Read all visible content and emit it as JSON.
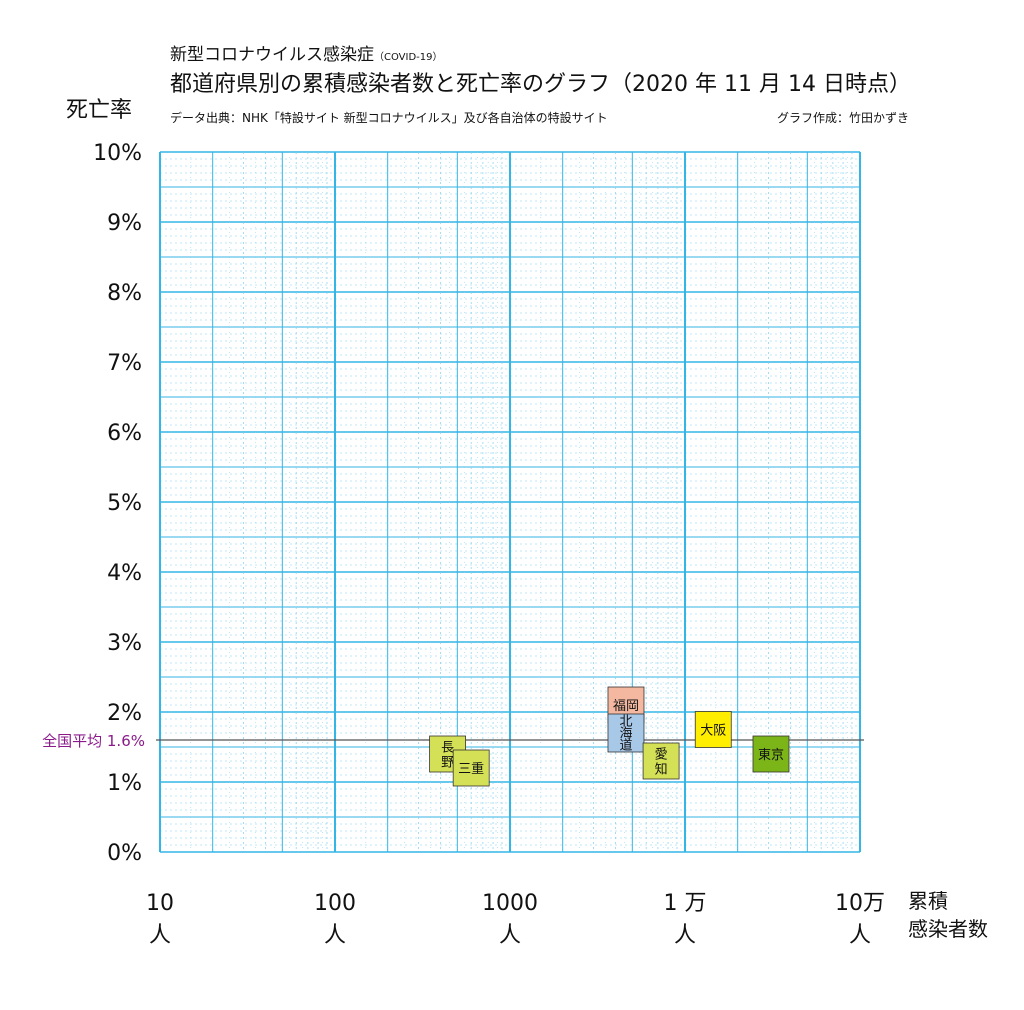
{
  "header": {
    "title_main": "新型コロナウイルス感染症",
    "title_sub": "（COVID-19）",
    "title_line2": "都道府県別の累積感染者数と死亡率のグラフ（2020 年 11 月 14 日時点）",
    "source": "データ出典：NHK「特設サイト 新型コロナウイルス」及び各自治体の特設サイト",
    "credit": "グラフ作成：竹田かずき"
  },
  "chart_data": {
    "type": "scatter",
    "title": "都道府県別の累積感染者数と死亡率のグラフ（2020 年 11 月 14 日時点）",
    "ylabel": "死亡率",
    "xlabel": [
      "累積",
      "感染者数"
    ],
    "x_scale": "log",
    "xlim": [
      10,
      100000
    ],
    "ylim": [
      0,
      10
    ],
    "grid": true,
    "y_ticks": [
      {
        "value": 0,
        "label": "0%"
      },
      {
        "value": 1,
        "label": "1%"
      },
      {
        "value": 2,
        "label": "2%"
      },
      {
        "value": 3,
        "label": "3%"
      },
      {
        "value": 4,
        "label": "4%"
      },
      {
        "value": 5,
        "label": "5%"
      },
      {
        "value": 6,
        "label": "6%"
      },
      {
        "value": 7,
        "label": "7%"
      },
      {
        "value": 8,
        "label": "8%"
      },
      {
        "value": 9,
        "label": "9%"
      },
      {
        "value": 10,
        "label": "10%"
      }
    ],
    "x_ticks": [
      {
        "value": 10,
        "label": "10",
        "unit": "人"
      },
      {
        "value": 100,
        "label": "100",
        "unit": "人"
      },
      {
        "value": 1000,
        "label": "1000",
        "unit": "人"
      },
      {
        "value": 10000,
        "label": "1 万",
        "unit": "人"
      },
      {
        "value": 100000,
        "label": "10万",
        "unit": "人"
      }
    ],
    "reference_line": {
      "label": "全国平均 1.6%",
      "value": 1.6,
      "color": "#555555"
    },
    "points": [
      {
        "name": "長野",
        "lines": [
          "長",
          "野"
        ],
        "x": 440,
        "y": 1.4,
        "color": "#d4e157"
      },
      {
        "name": "三重",
        "lines": [
          "三重"
        ],
        "x": 600,
        "y": 1.2,
        "color": "#d4e157"
      },
      {
        "name": "福岡",
        "lines": [
          "福岡"
        ],
        "x": 4600,
        "y": 2.1,
        "color": "#f4b8a0"
      },
      {
        "name": "北海道",
        "lines": [
          "北",
          "海",
          "道"
        ],
        "x": 4600,
        "y": 1.7,
        "color": "#a8c8e8"
      },
      {
        "name": "愛知",
        "lines": [
          "愛",
          "知"
        ],
        "x": 7300,
        "y": 1.3,
        "color": "#d4e157"
      },
      {
        "name": "大阪",
        "lines": [
          "大阪"
        ],
        "x": 14500,
        "y": 1.75,
        "color": "#ffee00"
      },
      {
        "name": "東京",
        "lines": [
          "東京"
        ],
        "x": 31000,
        "y": 1.4,
        "color": "#7cb518"
      }
    ],
    "colors": {
      "grid": "#33b5e5",
      "grid_minor": "#7fd0ef",
      "avg_label": "#8a1a8a"
    }
  }
}
